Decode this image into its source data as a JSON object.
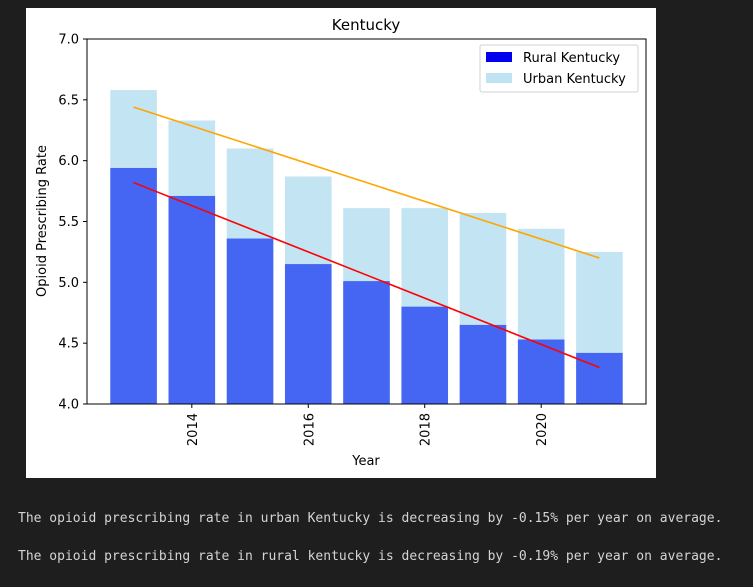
{
  "chart_data": {
    "type": "bar",
    "title": "Kentucky",
    "xlabel": "Year",
    "ylabel": "Opioid Prescribing Rate",
    "x": [
      2013,
      2014,
      2015,
      2016,
      2017,
      2018,
      2019,
      2020,
      2021
    ],
    "xticks": [
      "2014",
      "2016",
      "2018",
      "2020"
    ],
    "yticks": [
      "4.0",
      "4.5",
      "5.0",
      "5.5",
      "6.0",
      "6.5",
      "7.0"
    ],
    "ylim": [
      4.0,
      7.0
    ],
    "xlim": [
      2012.2,
      2021.8
    ],
    "grid": false,
    "legend_position": "top-right",
    "series": [
      {
        "name": "Urban Kentucky",
        "color": "#c3e4f3",
        "legend_color": "#bfe3f2",
        "values": [
          6.58,
          6.33,
          6.1,
          5.87,
          5.61,
          5.61,
          5.57,
          5.44,
          5.25
        ]
      },
      {
        "name": "Rural Kentucky",
        "color": "#4466f3",
        "legend_color": "#0000ee",
        "values": [
          5.94,
          5.71,
          5.36,
          5.15,
          5.01,
          4.8,
          4.65,
          4.53,
          4.42
        ]
      }
    ],
    "trendlines": [
      {
        "series": "Urban Kentucky",
        "color": "#ffa500",
        "start": [
          2013,
          6.44
        ],
        "end": [
          2021,
          5.2
        ]
      },
      {
        "series": "Rural Kentucky",
        "color": "#ff0000",
        "start": [
          2013,
          5.82
        ],
        "end": [
          2021,
          4.3
        ]
      }
    ]
  },
  "output": {
    "line1": "The opioid prescribing rate in urban Kentucky is decreasing by -0.15% per year on average.",
    "line2": "The opioid prescribing rate in rural kentucky is decreasing by -0.19% per year on average."
  }
}
